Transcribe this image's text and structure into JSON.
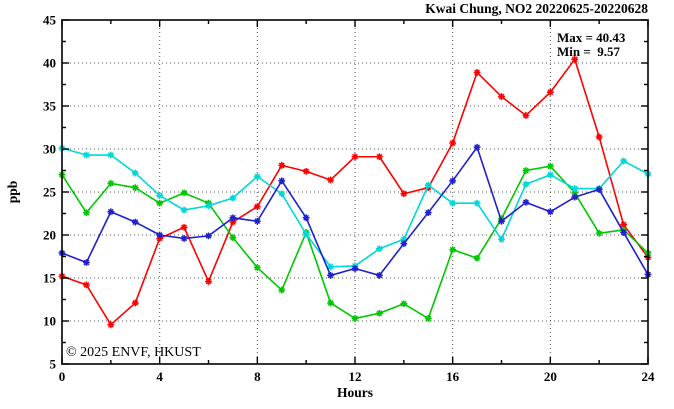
{
  "title": "Kwai Chung, NO2 20220625-20220628",
  "annotation": {
    "max_label": "Max = 40.43",
    "min_label": "Min =  9.57"
  },
  "watermark": "© 2025 ENVF, HKUST",
  "chart_data": {
    "type": "line",
    "title": "Kwai Chung, NO2 20220625-20220628",
    "xlabel": "Hours",
    "ylabel": "ppb",
    "x_range": [
      0,
      24
    ],
    "y_range": [
      5,
      45
    ],
    "x_major_ticks": [
      0,
      4,
      8,
      12,
      16,
      20,
      24
    ],
    "x_minor_ticks": [
      2,
      6,
      10,
      14,
      18,
      22
    ],
    "y_major_ticks": [
      5,
      10,
      15,
      20,
      25,
      30,
      35,
      40,
      45
    ],
    "y_minor_ticks": [
      7.5,
      12.5,
      17.5,
      22.5,
      27.5,
      32.5,
      37.5,
      42.5
    ],
    "grid": {
      "horizontal_at": [
        10,
        15,
        20,
        25,
        30,
        35,
        40
      ],
      "vertical_at": [
        4,
        8,
        12,
        16,
        20
      ],
      "style": "dotted"
    },
    "legend": "none",
    "max_shown": 40.43,
    "min_shown": 9.57,
    "x": [
      0,
      1,
      2,
      3,
      4,
      5,
      6,
      7,
      8,
      9,
      10,
      11,
      12,
      13,
      14,
      15,
      16,
      17,
      18,
      19,
      20,
      21,
      22,
      23,
      24
    ],
    "series": [
      {
        "name": "series-red",
        "color": "#ff0000",
        "values": [
          15.2,
          14.2,
          9.57,
          12.1,
          19.6,
          20.9,
          14.6,
          21.5,
          23.3,
          28.1,
          27.4,
          26.4,
          29.1,
          29.1,
          24.8,
          25.5,
          30.7,
          38.9,
          36.1,
          33.9,
          36.6,
          40.43,
          31.4,
          21.2,
          17.4
        ]
      },
      {
        "name": "series-green",
        "color": "#00c800",
        "values": [
          27.0,
          22.6,
          26.0,
          25.5,
          23.7,
          24.9,
          23.7,
          19.7,
          16.2,
          13.6,
          20.3,
          12.1,
          10.3,
          10.9,
          12.0,
          10.3,
          18.3,
          17.3,
          21.9,
          27.5,
          28.0,
          24.9,
          20.2,
          20.6,
          17.9
        ]
      },
      {
        "name": "series-cyan",
        "color": "#00d8d8",
        "values": [
          30.1,
          29.3,
          29.3,
          27.2,
          24.6,
          22.9,
          23.4,
          24.3,
          26.8,
          24.8,
          20.1,
          16.3,
          16.4,
          18.4,
          19.5,
          25.8,
          23.7,
          23.7,
          19.5,
          25.9,
          27.0,
          25.4,
          25.4,
          28.6,
          27.1
        ]
      },
      {
        "name": "series-blue",
        "color": "#2020d0",
        "values": [
          17.9,
          16.8,
          22.7,
          21.5,
          20.0,
          19.6,
          19.9,
          22.0,
          21.6,
          26.3,
          22.0,
          15.3,
          16.1,
          15.3,
          19.0,
          22.6,
          26.3,
          30.2,
          21.6,
          23.8,
          22.7,
          24.4,
          25.3,
          20.3,
          15.4
        ]
      }
    ]
  }
}
